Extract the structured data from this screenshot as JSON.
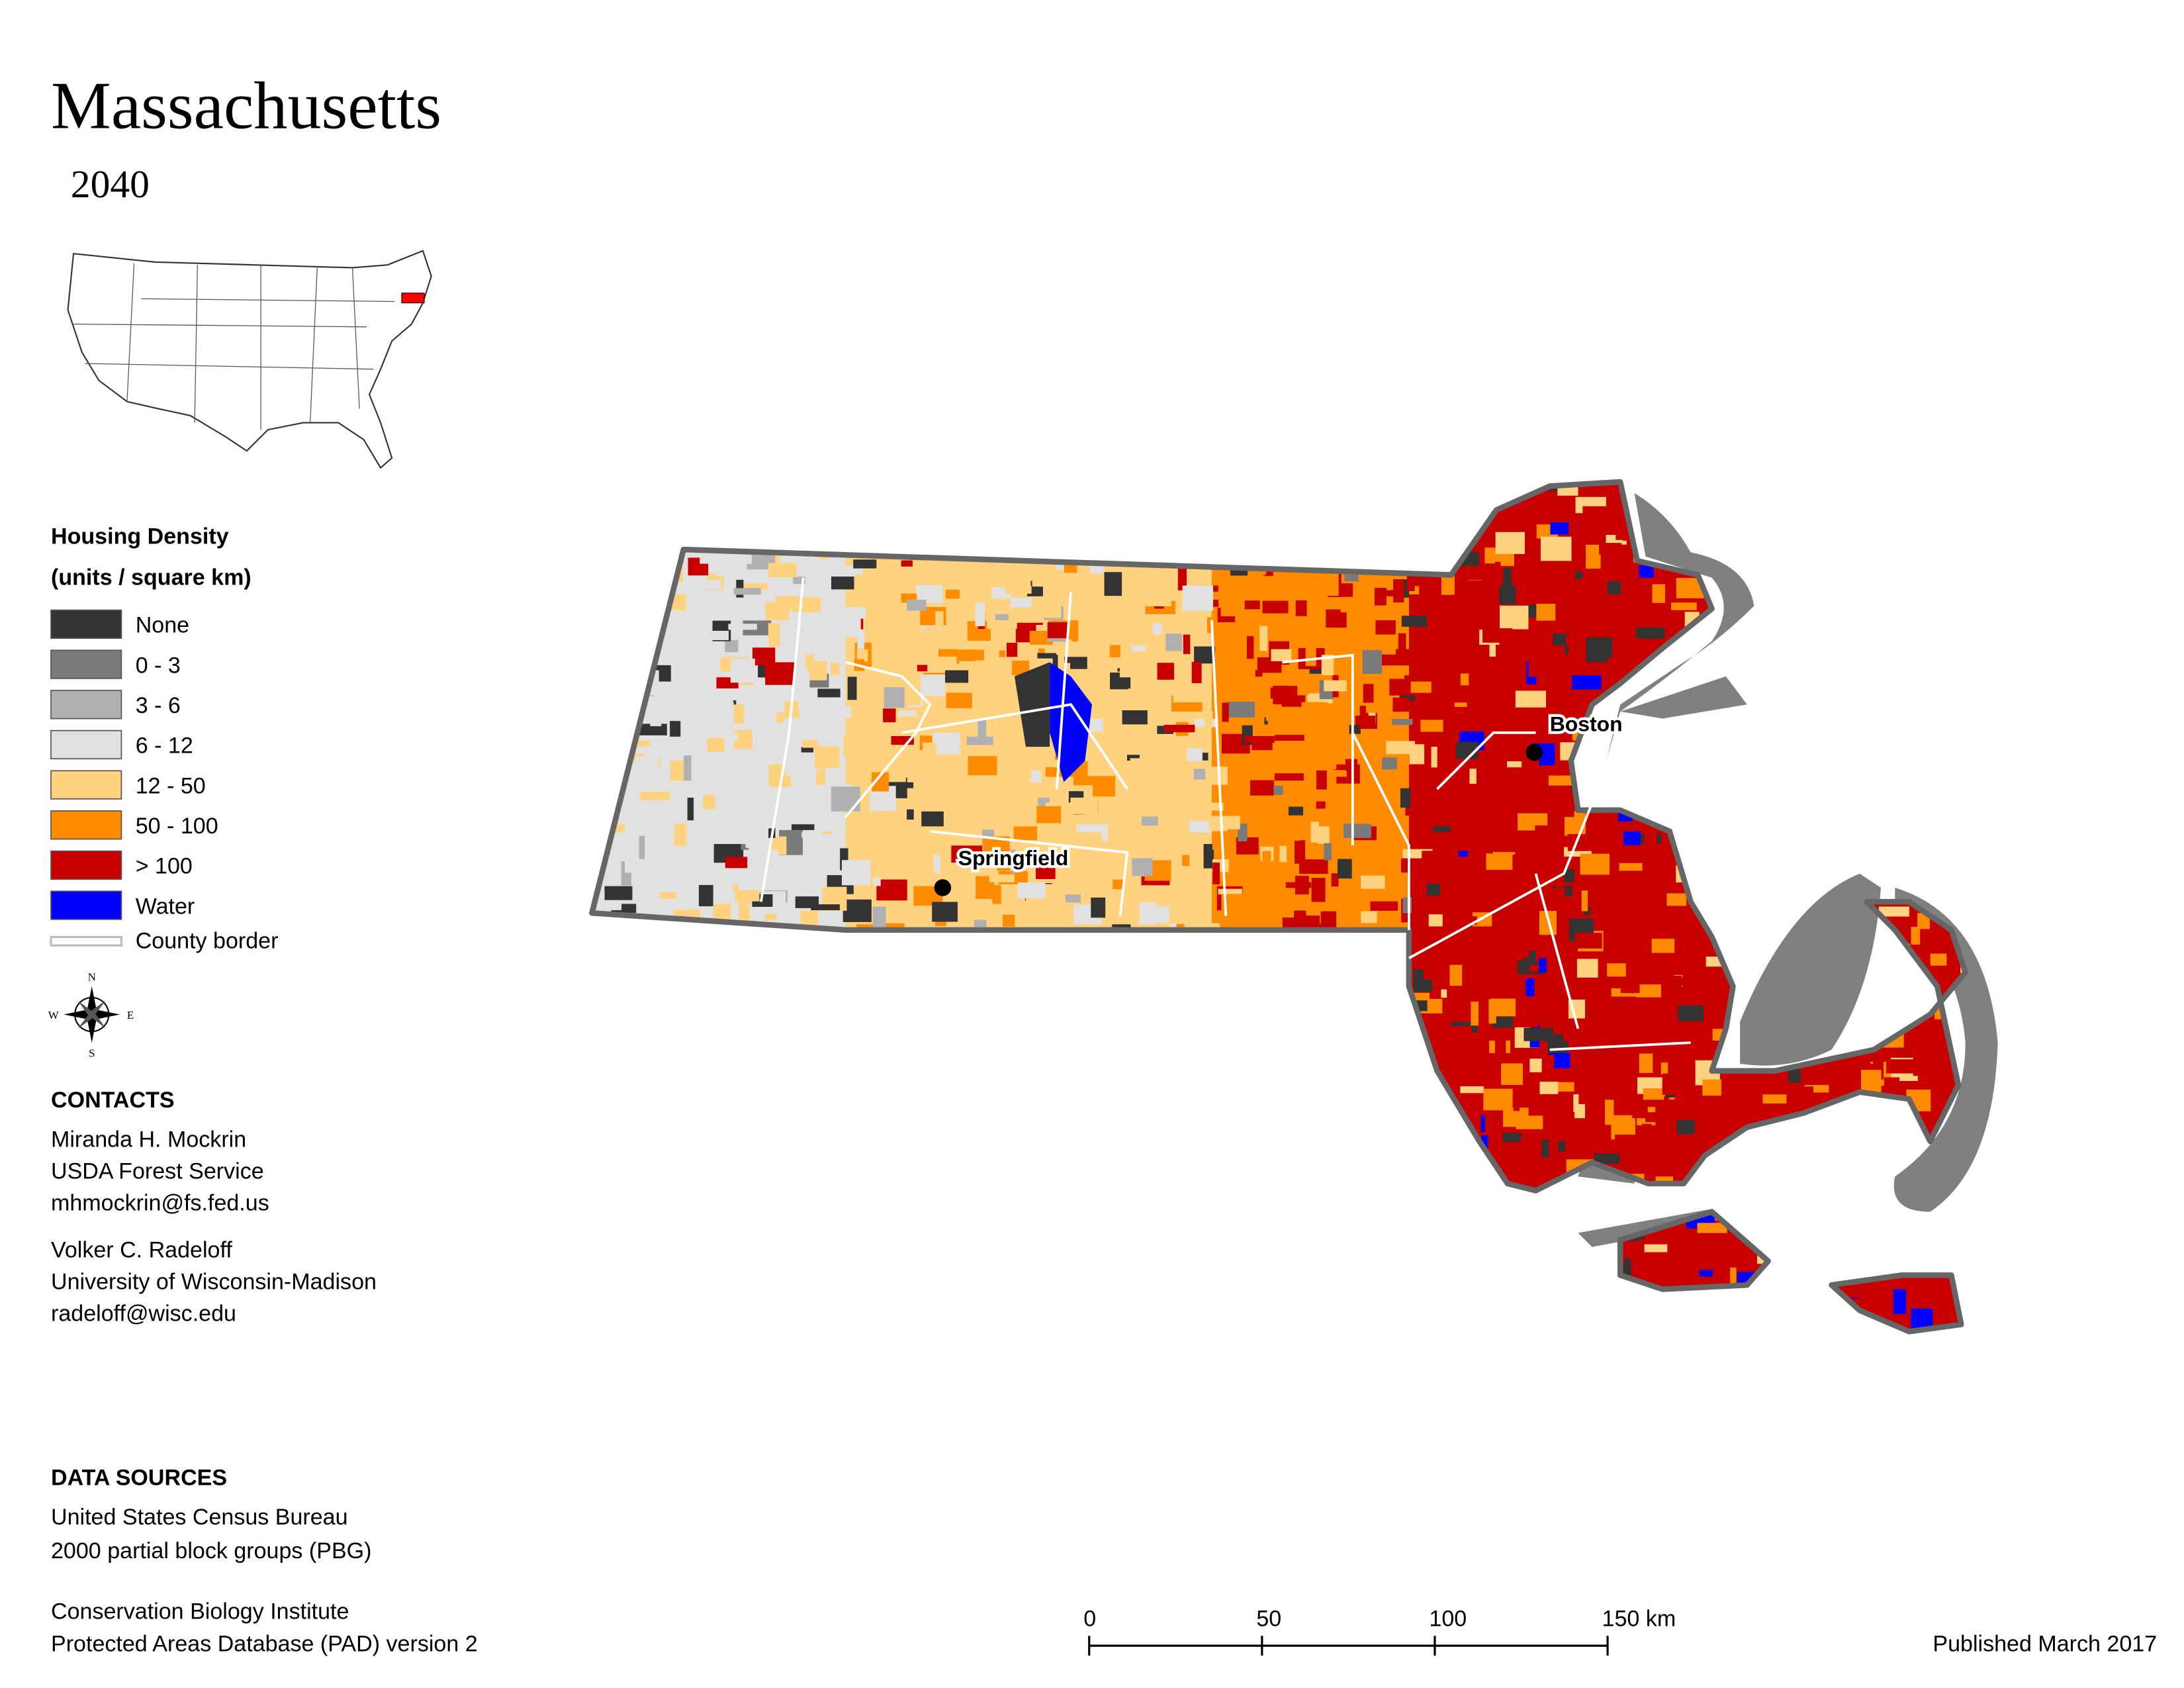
{
  "header": {
    "title": "Massachusetts",
    "subtitle": "2040"
  },
  "legend": {
    "title": "Housing Density",
    "subtitle": "(units / square km)",
    "items": [
      {
        "label": "None",
        "color": "#333333"
      },
      {
        "label": "0 - 3",
        "color": "#7a7a7a"
      },
      {
        "label": "3 - 6",
        "color": "#b0b0b0"
      },
      {
        "label": "6 - 12",
        "color": "#e1e1e1"
      },
      {
        "label": "12 - 50",
        "color": "#ffd27f"
      },
      {
        "label": "50 - 100",
        "color": "#ff8c00"
      },
      {
        "label": "> 100",
        "color": "#c80000"
      },
      {
        "label": "Water",
        "color": "#0000ff"
      }
    ],
    "border_label": "County border"
  },
  "compass": {
    "north": "N",
    "east": "E",
    "south": "S",
    "west": "W"
  },
  "contacts": {
    "title": "CONTACTS",
    "people": [
      {
        "name": "Miranda H. Mockrin",
        "org": "USDA Forest Service",
        "email": "mhmockrin@fs.fed.us"
      },
      {
        "name": "Volker C. Radeloff",
        "org": "University of Wisconsin-Madison",
        "email": "radeloff@wisc.edu"
      }
    ]
  },
  "data_sources": {
    "title": "DATA SOURCES",
    "lines": [
      "United States Census Bureau",
      "2000 partial block groups (PBG)",
      "Conservation Biology Institute",
      "Protected Areas Database (PAD) version 2"
    ]
  },
  "map": {
    "cities": [
      "Springfield",
      "Boston"
    ]
  },
  "scale_bar": {
    "labels": [
      "0",
      "50",
      "100",
      "150 km"
    ]
  },
  "footer": {
    "published": "Published March 2017"
  }
}
